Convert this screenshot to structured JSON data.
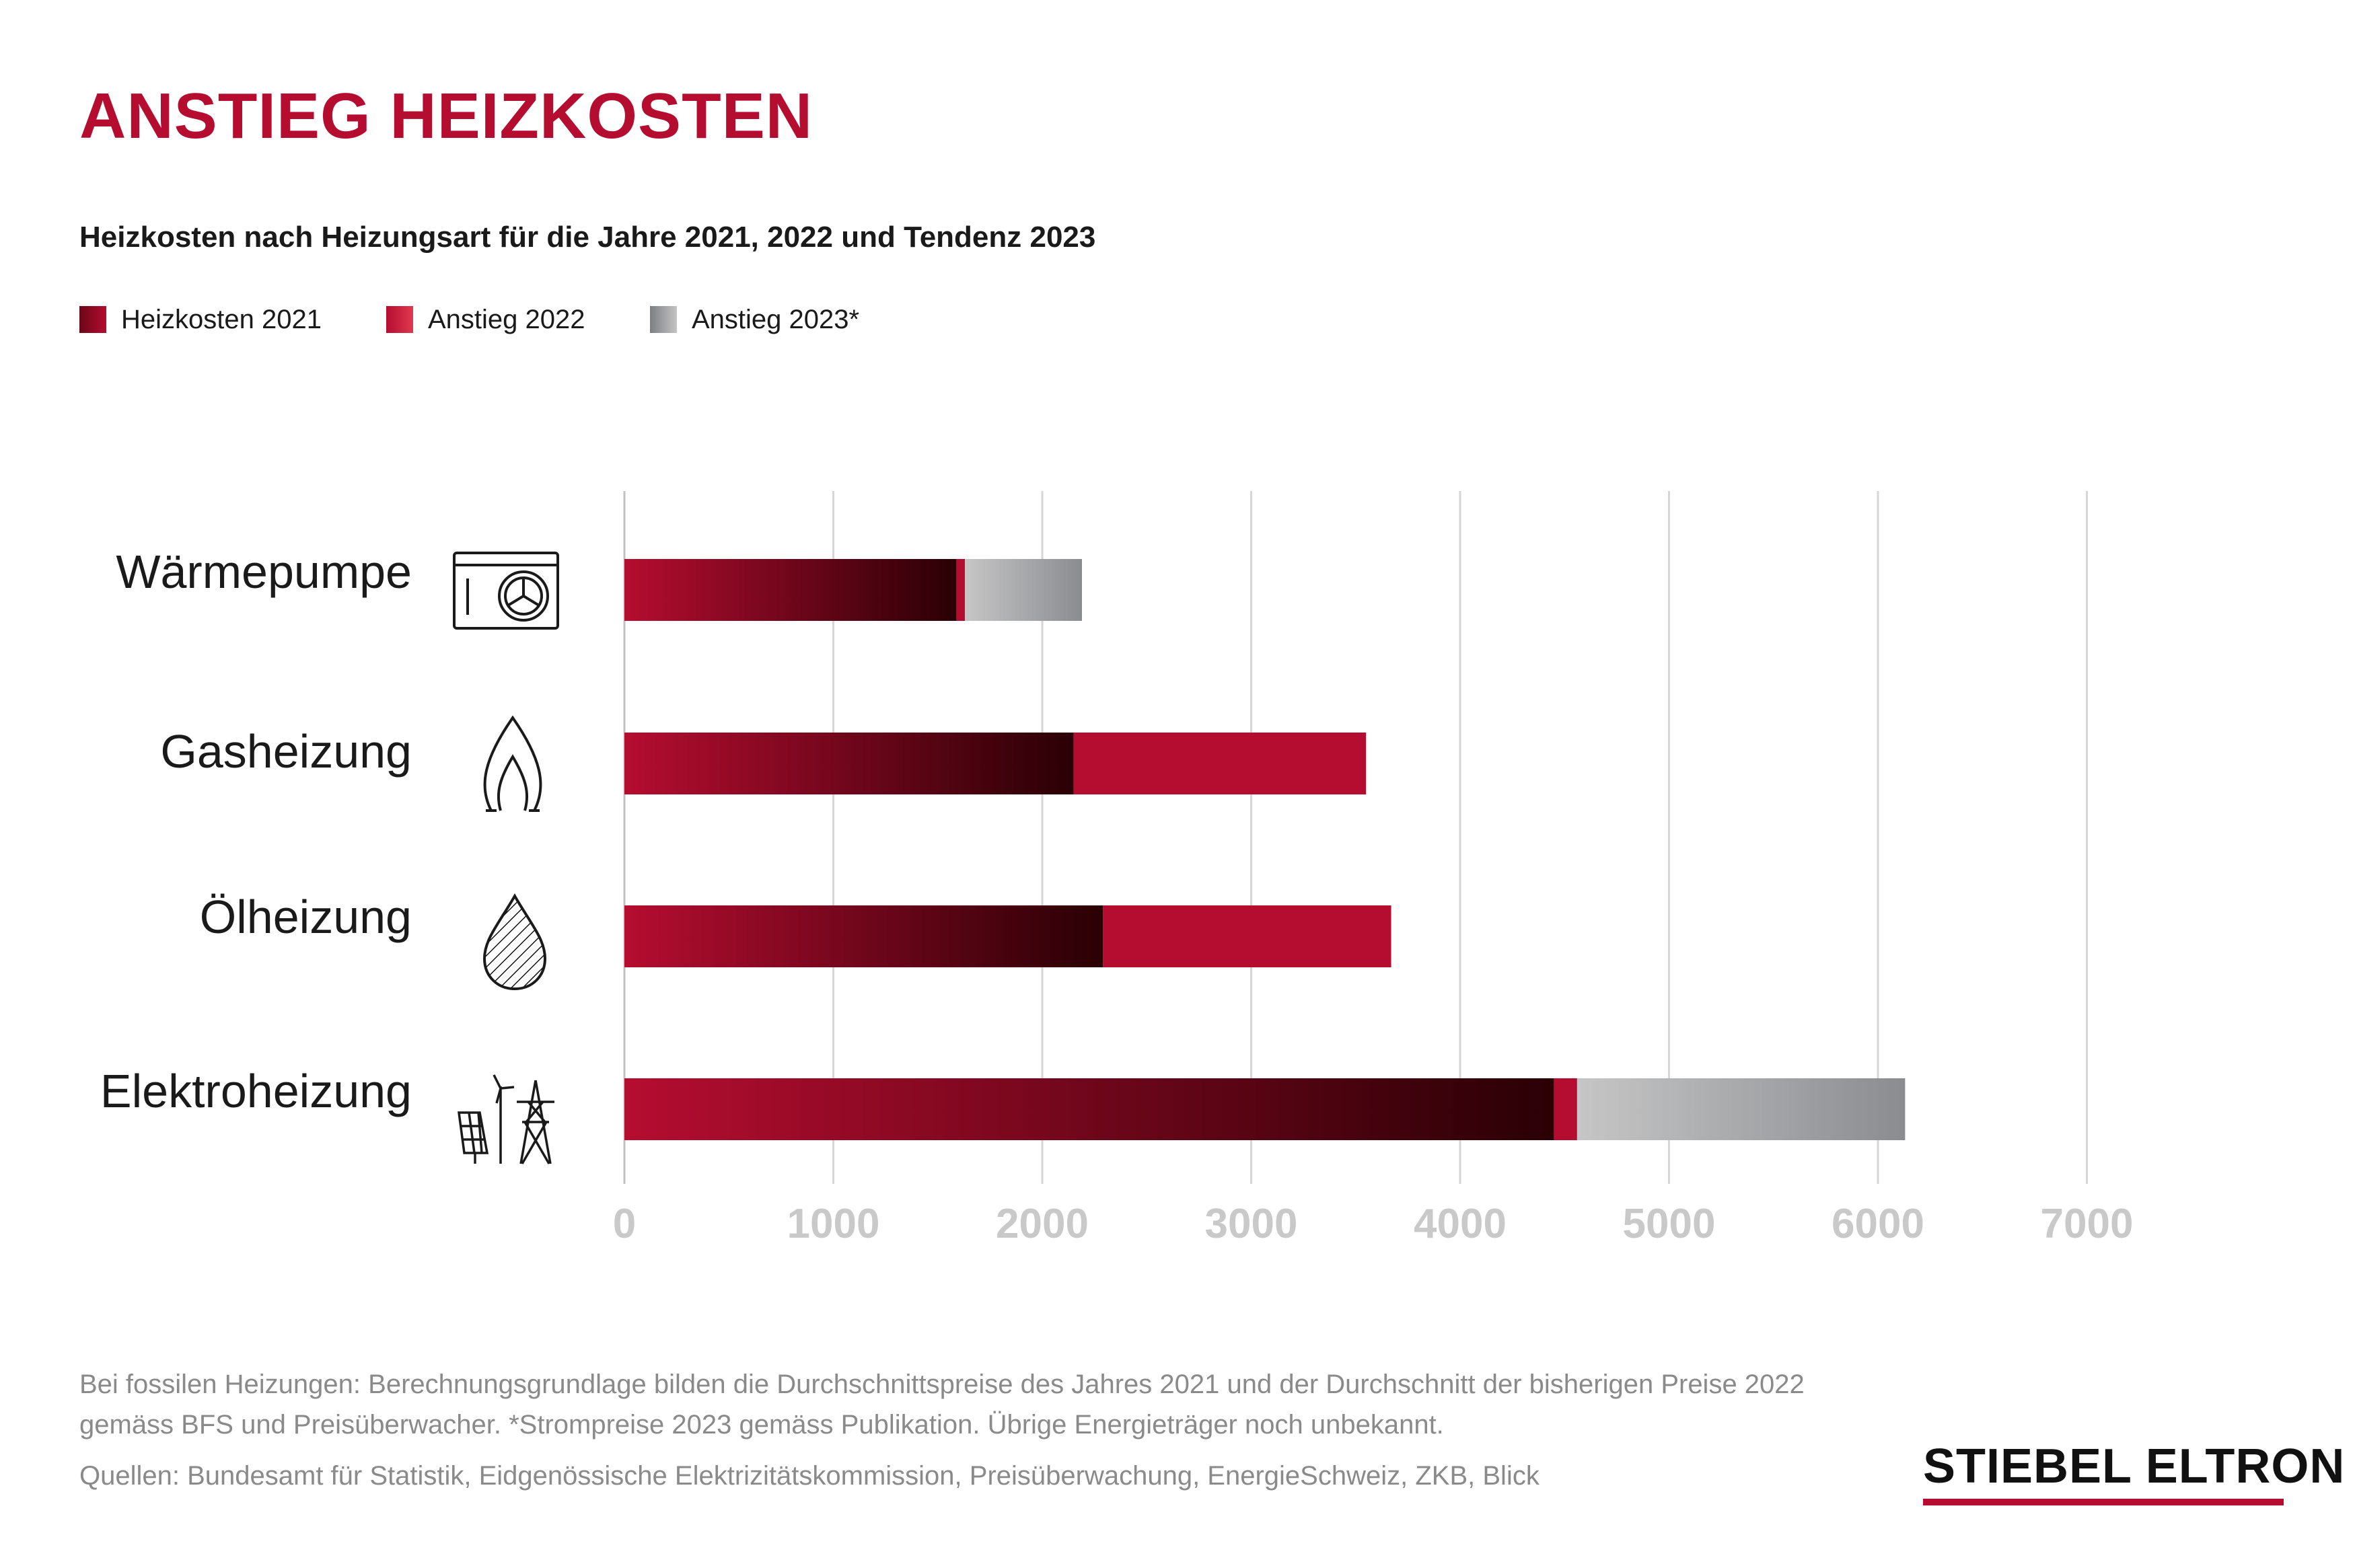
{
  "title": "ANSTIEG HEIZKOSTEN",
  "subtitle": "Heizkosten nach Heizungsart für die Jahre 2021, 2022 und Tendenz 2023",
  "legend": [
    {
      "label": "Heizkosten 2021",
      "color_start": "#6b0718",
      "color_end": "#b50d30"
    },
    {
      "label": "Anstieg 2022",
      "color_start": "#b50d30",
      "color_end": "#e0394f"
    },
    {
      "label": "Anstieg 2023*",
      "color_start": "#7d7f83",
      "color_end": "#c4c4c4"
    }
  ],
  "colors": {
    "brand_red": "#b50d30",
    "bar_dark": "#2a0005",
    "gray_light": "#c6c6c6",
    "gray_dark": "#8a8c90",
    "grid": "#d6d6d6",
    "tick_label": "#c9c9c9",
    "footnote": "#8a8a8a"
  },
  "chart_data": {
    "type": "bar",
    "orientation": "horizontal",
    "stacked": true,
    "categories": [
      "Wärmepumpe",
      "Gasheizung",
      "Ölheizung",
      "Elektroheizung"
    ],
    "category_icons": [
      "heat-pump-icon",
      "gas-flame-icon",
      "oil-drop-icon",
      "solar-wind-powerline-icon"
    ],
    "series": [
      {
        "name": "Heizkosten 2021",
        "values": [
          1590,
          2150,
          2290,
          4450
        ]
      },
      {
        "name": "Anstieg 2022",
        "values": [
          40,
          1400,
          1380,
          110
        ]
      },
      {
        "name": "Anstieg 2023*",
        "values": [
          560,
          0,
          0,
          1570
        ]
      }
    ],
    "xlim": [
      0,
      7000
    ],
    "xticks": [
      0,
      1000,
      2000,
      3000,
      4000,
      5000,
      6000,
      7000
    ],
    "grid": true,
    "legend_position": "top-left"
  },
  "footnotes": {
    "line1": "Bei fossilen Heizungen: Berechnungsgrundlage bilden die Durchschnittspreise des Jahres 2021 und der Durchschnitt der bisherigen Preise 2022",
    "line2": "gemäss BFS und Preisüberwacher. *Strompreise 2023 gemäss Publikation. Übrige Energieträger noch unbekannt.",
    "sources": "Quellen: Bundesamt für Statistik, Eidgenössische Elektrizitätskommission, Preisüberwachung, EnergieSchweiz, ZKB, Blick"
  },
  "logo": {
    "text": "STIEBEL ELTRON"
  }
}
